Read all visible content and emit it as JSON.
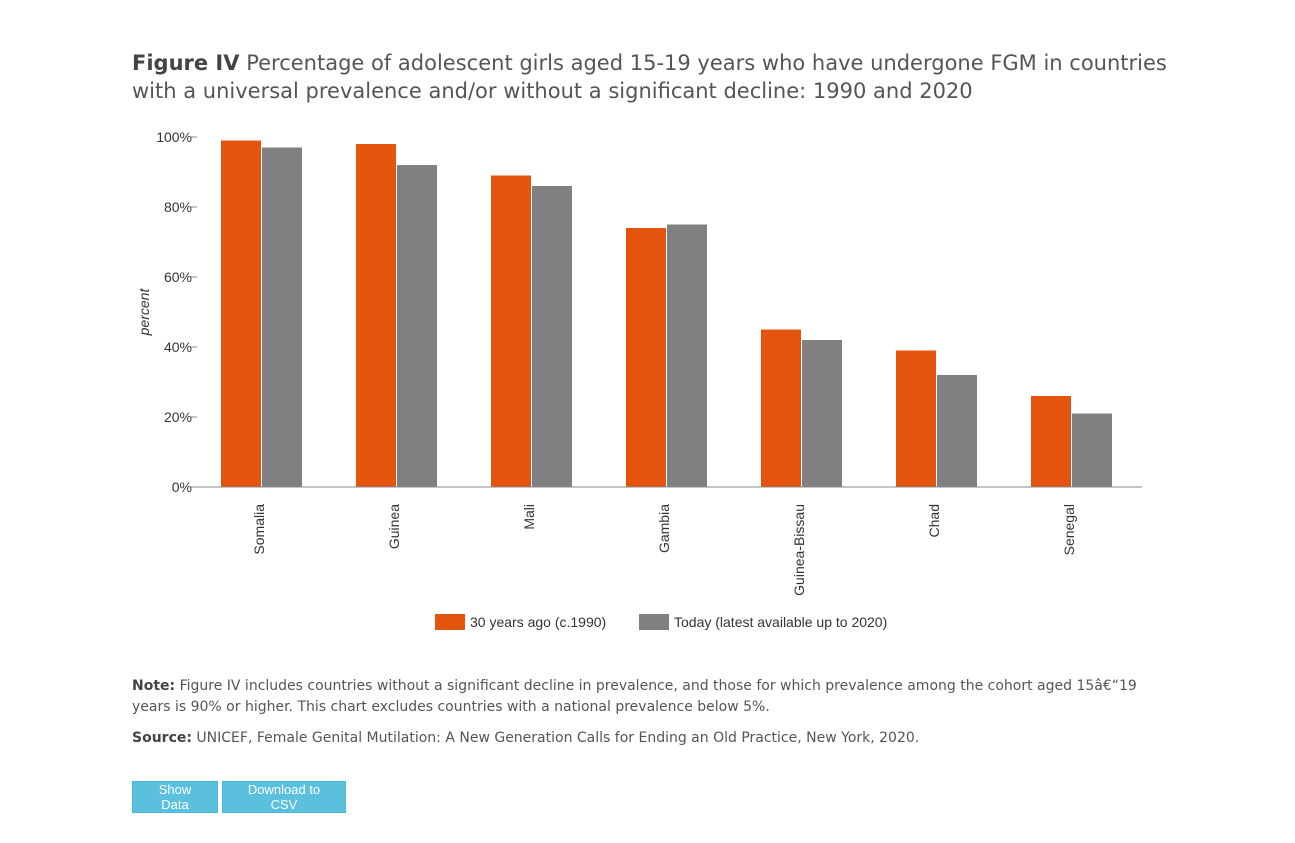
{
  "figure": {
    "label": "Figure IV",
    "title": "Percentage of adolescent girls aged 15-19 years who have undergone FGM in countries with a universal prevalence and/or without a significant decline: 1990 and 2020"
  },
  "chart_data": {
    "type": "bar",
    "categories": [
      "Somalia",
      "Guinea",
      "Mali",
      "Gambia",
      "Guinea-Bissau",
      "Chad",
      "Senegal"
    ],
    "series": [
      {
        "name": "30 years ago (c.1990)",
        "values": [
          99,
          98,
          89,
          74,
          45,
          39,
          26
        ],
        "color": "#e4540f"
      },
      {
        "name": "Today (latest available up to 2020)",
        "values": [
          97,
          92,
          86,
          75,
          42,
          32,
          21
        ],
        "color": "#808080"
      }
    ],
    "ylabel": "percent",
    "ylim": [
      0,
      100
    ],
    "yticks": [
      "0%",
      "20%",
      "40%",
      "60%",
      "80%",
      "100%"
    ],
    "grid": false,
    "legend": "bottom-center"
  },
  "note": {
    "label": "Note:",
    "text": "Figure IV includes countries without a significant decline in prevalence, and those for which prevalence among the cohort aged 15â€“19 years is 90% or higher. This chart excludes countries with a national prevalence below 5%."
  },
  "source": {
    "label": "Source:",
    "text": "UNICEF, Female Genital Mutilation: A New Generation Calls for Ending an Old Practice, New York, 2020."
  },
  "buttons": {
    "show_data": "Show Data",
    "download_csv": "Download to CSV"
  }
}
